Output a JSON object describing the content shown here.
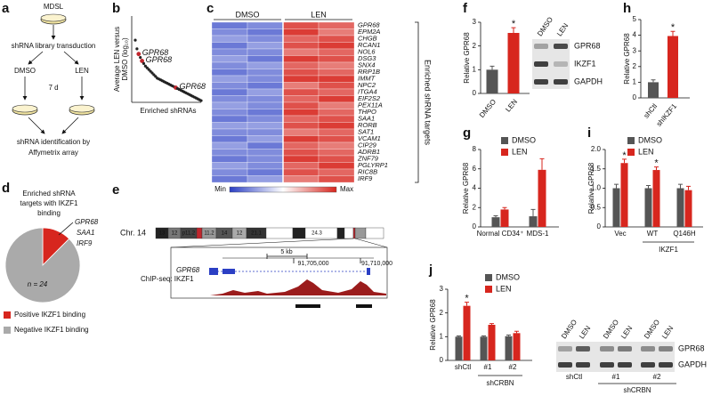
{
  "figure": {
    "labels": [
      "a",
      "b",
      "c",
      "d",
      "e",
      "f",
      "g",
      "h",
      "i",
      "j"
    ],
    "a": {
      "top": "MDSL",
      "step1": "shRNA library transduction",
      "left": "DMSO",
      "right": "LEN",
      "time": "7 d",
      "result": [
        "shRNA identification by",
        "Affymetrix array"
      ]
    },
    "e": {
      "chromosome": "Chr. 14",
      "bands": [
        "13",
        "12",
        "p11.2",
        "11.2",
        "14",
        "12",
        "21.1",
        "24.3"
      ],
      "scale": "5 kb",
      "coords": [
        "91,705,000",
        "91,710,000"
      ],
      "gene": "GPR68",
      "track": "ChIP-seq: IKZF1"
    },
    "f_blot": {
      "lanes": [
        "DMSO",
        "LEN"
      ],
      "proteins": [
        "GPR68",
        "IKZF1",
        "GAPDH"
      ]
    },
    "j_blot": {
      "lanes": [
        "DMSO",
        "LEN",
        "DMSO",
        "LEN",
        "DMSO",
        "LEN"
      ],
      "proteins": [
        "GPR68",
        "GAPDH"
      ],
      "groups": [
        "shCtl",
        "#1",
        "#2"
      ],
      "group_label": "shCRBN"
    }
  },
  "chart_data": [
    {
      "type": "scatter",
      "ylabel": [
        "Average LEN versus",
        "DMSO (log₁₀)"
      ],
      "xlabel": "Enriched shRNAs",
      "annotations": [
        "GPR68",
        "GPR68",
        "GPR68"
      ],
      "ylim": [
        0,
        1
      ],
      "color": "#222222",
      "highlight_color": "#c0262d",
      "values": [
        0.72,
        0.62,
        0.56,
        0.52,
        0.48,
        0.45,
        0.42,
        0.4,
        0.38,
        0.36,
        0.34,
        0.32,
        0.3,
        0.28,
        0.27,
        0.26,
        0.25,
        0.24,
        0.23,
        0.22,
        0.21,
        0.2,
        0.19,
        0.18,
        0.17,
        0.16,
        0.15,
        0.14,
        0.13,
        0.12,
        0.11,
        0.1,
        0.09,
        0.08,
        0.07,
        0.06,
        0.05,
        0.04,
        0.03,
        0.02
      ]
    },
    {
      "type": "heatmap",
      "column_groups": [
        "DMSO",
        "LEN"
      ],
      "label": "Enriched shRNA targets",
      "legend": [
        "Min",
        "Max"
      ],
      "range": [
        -1,
        1
      ],
      "colors": [
        "#2b3fc4",
        "#ffffff",
        "#d7261e"
      ],
      "rows": [
        "GPR68",
        "EPM2A",
        "CHGB",
        "RCAN1",
        "NOL6",
        "DSG3",
        "SNX4",
        "RRP1B",
        "IMMT",
        "NPC2",
        "ITGA4",
        "EIF2S2",
        "PEX11A",
        "THPO",
        "SAA1",
        "RORB",
        "SAT1",
        "VCAM1",
        "CIP29",
        "ADRB1",
        "ZNF79",
        "PGLYRP1",
        "RIC8B",
        "IRF9"
      ],
      "values": [
        [
          -0.7,
          -0.6,
          0.8,
          0.7
        ],
        [
          -0.6,
          -0.7,
          0.9,
          0.6
        ],
        [
          -0.5,
          -0.6,
          0.7,
          0.8
        ],
        [
          -0.7,
          -0.5,
          0.8,
          0.9
        ],
        [
          -0.6,
          -0.6,
          0.6,
          0.7
        ],
        [
          -0.5,
          -0.7,
          0.9,
          0.8
        ],
        [
          -0.6,
          -0.5,
          0.7,
          0.6
        ],
        [
          -0.7,
          -0.6,
          0.8,
          0.7
        ],
        [
          -0.5,
          -0.6,
          0.9,
          0.9
        ],
        [
          -0.6,
          -0.7,
          0.6,
          0.8
        ],
        [
          -0.7,
          -0.5,
          0.8,
          0.7
        ],
        [
          -0.6,
          -0.6,
          0.7,
          0.9
        ],
        [
          -0.5,
          -0.6,
          0.8,
          0.6
        ],
        [
          -0.6,
          -0.7,
          0.9,
          0.7
        ],
        [
          -0.7,
          -0.6,
          0.7,
          0.8
        ],
        [
          -0.5,
          -0.5,
          0.8,
          0.9
        ],
        [
          -0.6,
          -0.6,
          0.6,
          0.7
        ],
        [
          -0.7,
          -0.5,
          0.9,
          0.8
        ],
        [
          -0.5,
          -0.7,
          0.7,
          0.6
        ],
        [
          -0.6,
          -0.6,
          0.8,
          0.7
        ],
        [
          -0.7,
          -0.6,
          0.9,
          0.8
        ],
        [
          -0.5,
          -0.6,
          0.7,
          0.9
        ],
        [
          -0.6,
          -0.7,
          0.8,
          0.7
        ],
        [
          -0.7,
          -0.5,
          0.6,
          0.8
        ]
      ]
    },
    {
      "type": "pie",
      "title": [
        "Enriched shRNA",
        "targets with IKZF1",
        "binding"
      ],
      "labels": [
        "GPR68",
        "SAA1",
        "IRF9"
      ],
      "note": "n = 24",
      "categories": [
        "Positive IKZF1 binding",
        "Negative IKZF1 binding"
      ],
      "values": [
        3,
        21
      ],
      "colors": [
        "#d7261e",
        "#aaaaaa"
      ]
    },
    {
      "type": "bar",
      "ylabel": "Relative GPR68",
      "categories": [
        "DMSO",
        "LEN"
      ],
      "values": [
        1.0,
        2.55
      ],
      "errors": [
        0.15,
        0.22
      ],
      "significance": [
        null,
        "*"
      ],
      "colors": [
        "#555555",
        "#d7261e"
      ],
      "ylim": [
        0,
        3
      ],
      "yticks": [
        0,
        1,
        2,
        3
      ]
    },
    {
      "type": "bar",
      "ylabel": "Relative GPR68",
      "categories": [
        "Normal CD34⁺",
        "MDS-1"
      ],
      "ylim": [
        0,
        8
      ],
      "yticks": [
        0,
        2,
        4,
        6,
        8
      ],
      "series": [
        {
          "name": "DMSO",
          "color": "#555555",
          "values": [
            1.0,
            1.1
          ],
          "errors": [
            0.15,
            0.7
          ]
        },
        {
          "name": "LEN",
          "color": "#d7261e",
          "values": [
            1.8,
            5.9
          ],
          "errors": [
            0.2,
            1.15
          ]
        }
      ]
    },
    {
      "type": "bar",
      "ylabel": "Relative GPR68",
      "categories": [
        "shCtl",
        "shIKZF1"
      ],
      "values": [
        1.0,
        3.95
      ],
      "errors": [
        0.15,
        0.3
      ],
      "significance": [
        null,
        "*"
      ],
      "colors": [
        "#555555",
        "#d7261e"
      ],
      "ylim": [
        0,
        5
      ],
      "yticks": [
        0,
        1,
        2,
        3,
        4,
        5
      ]
    },
    {
      "type": "bar",
      "ylabel": "Relative GPR68",
      "categories": [
        "Vec",
        "WT",
        "Q146H"
      ],
      "group_label": "IKZF1",
      "ylim": [
        0,
        2
      ],
      "yticks": [
        0,
        0.5,
        {
          "value": 1,
          "label": "1.0"
        },
        1.5,
        {
          "value": 2,
          "label": "2.0"
        }
      ],
      "series": [
        {
          "name": "DMSO",
          "color": "#555555",
          "values": [
            1.0,
            1.0,
            1.0
          ],
          "errors": [
            0.1,
            0.07,
            0.1
          ]
        },
        {
          "name": "LEN",
          "color": "#d7261e",
          "values": [
            1.65,
            1.47,
            0.95
          ],
          "errors": [
            0.1,
            0.08,
            0.1
          ],
          "significance": [
            "*",
            "*",
            null
          ]
        }
      ]
    },
    {
      "type": "bar",
      "ylabel": "Relative GPR68",
      "categories": [
        "shCtl",
        "#1",
        "#2"
      ],
      "group_label": "shCRBN",
      "ylim": [
        0,
        3
      ],
      "yticks": [
        0,
        1,
        2,
        3
      ],
      "series": [
        {
          "name": "DMSO",
          "color": "#555555",
          "values": [
            1.0,
            1.0,
            1.02
          ],
          "errors": [
            0.03,
            0.03,
            0.05
          ]
        },
        {
          "name": "LEN",
          "color": "#d7261e",
          "values": [
            2.3,
            1.5,
            1.15
          ],
          "errors": [
            0.15,
            0.05,
            0.08
          ],
          "significance": [
            "*",
            null,
            null
          ]
        }
      ]
    }
  ]
}
